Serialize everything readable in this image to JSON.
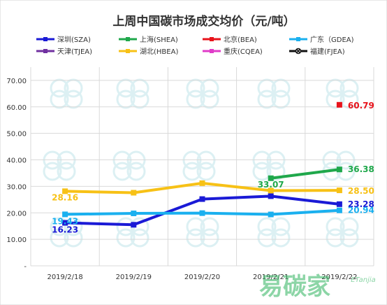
{
  "chart_data": {
    "type": "line",
    "title": "上周中国碳市场成交均价（元/吨）",
    "categories": [
      "2019/2/18",
      "2019/2/19",
      "2019/2/20",
      "2019/2/21",
      "2019/2/22"
    ],
    "y_tick_labels": [
      "-",
      "10.00",
      "20.00",
      "30.00",
      "40.00",
      "50.00",
      "60.00",
      "70.00"
    ],
    "ylim": [
      0,
      75
    ],
    "grid": true,
    "legend_position": "top",
    "series": [
      {
        "name": "深圳(SZA)",
        "color": "#1a1ad6",
        "marker": "square",
        "values": [
          16.23,
          15.5,
          25.2,
          26.3,
          23.28
        ],
        "labels": [
          "16.23",
          null,
          null,
          null,
          "23.28"
        ]
      },
      {
        "name": "上海(SHEA)",
        "color": "#1fa84b",
        "marker": "square",
        "values": [
          null,
          null,
          null,
          33.07,
          36.38
        ],
        "labels": [
          null,
          null,
          null,
          "33.07",
          "36.38"
        ]
      },
      {
        "name": "北京(BEA)",
        "color": "#e8131b",
        "marker": "square",
        "values": [
          null,
          null,
          null,
          null,
          60.79
        ],
        "labels": [
          null,
          null,
          null,
          null,
          "60.79"
        ]
      },
      {
        "name": "广东（GDEA)",
        "color": "#1ab0ef",
        "marker": "square",
        "values": [
          19.43,
          19.8,
          19.9,
          19.4,
          20.94
        ],
        "labels": [
          "19.43",
          null,
          null,
          null,
          "20.94"
        ]
      },
      {
        "name": "天津(TJEA)",
        "color": "#7030a0",
        "marker": "square",
        "values": [
          null,
          null,
          null,
          null,
          null
        ],
        "labels": [
          null,
          null,
          null,
          null,
          null
        ]
      },
      {
        "name": "湖北(HBEA)",
        "color": "#f7c116",
        "marker": "square",
        "values": [
          28.16,
          27.6,
          31.2,
          28.4,
          28.5
        ],
        "labels": [
          "28.16",
          null,
          null,
          null,
          "28.50"
        ]
      },
      {
        "name": "重庆(CQEA)",
        "color": "#e03cc8",
        "marker": "square",
        "values": [
          null,
          null,
          null,
          null,
          null
        ],
        "labels": [
          null,
          null,
          null,
          null,
          null
        ]
      },
      {
        "name": "福建(FJEA)",
        "color": "#111111",
        "marker": "x",
        "values": [
          null,
          null,
          null,
          null,
          null
        ],
        "labels": [
          null,
          null,
          null,
          null,
          null
        ]
      }
    ]
  },
  "watermark": {
    "text": "易碳家",
    "subtext": "ETanjia"
  }
}
